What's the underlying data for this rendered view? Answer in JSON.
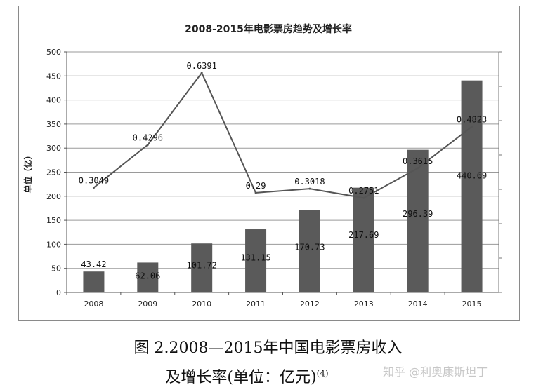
{
  "chart_data": {
    "type": "bar",
    "title": "2008-2015年电影票房趋势及增长率",
    "ylabel": "单位（亿）",
    "xlabel": "",
    "ylim": [
      0,
      500
    ],
    "yticks": [
      0,
      50,
      100,
      150,
      200,
      250,
      300,
      350,
      400,
      450,
      500
    ],
    "categories": [
      "2008",
      "2009",
      "2010",
      "2011",
      "2012",
      "2013",
      "2014",
      "2015"
    ],
    "series": [
      {
        "type": "bar",
        "values": [
          43.42,
          62.06,
          101.72,
          131.15,
          170.73,
          217.69,
          296.39,
          440.69
        ],
        "labels": [
          "43.42",
          "62.06",
          "101.72",
          "131.15",
          "170.73",
          "217.69",
          "296.39",
          "440.69"
        ],
        "color": "#5a5a5a"
      },
      {
        "type": "line",
        "axis": "secondary",
        "values": [
          0.3049,
          0.4296,
          0.6391,
          0.29,
          0.3018,
          0.2751,
          0.3615,
          0.4823
        ],
        "labels": [
          "0.3049",
          "0.4296",
          "0.6391",
          "0.29",
          "0.3018",
          "0.2751",
          "0.3615",
          "0.4823"
        ],
        "color": "#555555"
      }
    ],
    "y2lim": [
      0,
      0.7
    ],
    "grid": true,
    "legend": "none"
  },
  "caption": {
    "line1": "图 2.2008—2015年中国电影票房收入",
    "line2": "及增长率(单位：亿元)",
    "ref": "(4)"
  },
  "watermark": "知乎 @利奥康斯坦丁"
}
